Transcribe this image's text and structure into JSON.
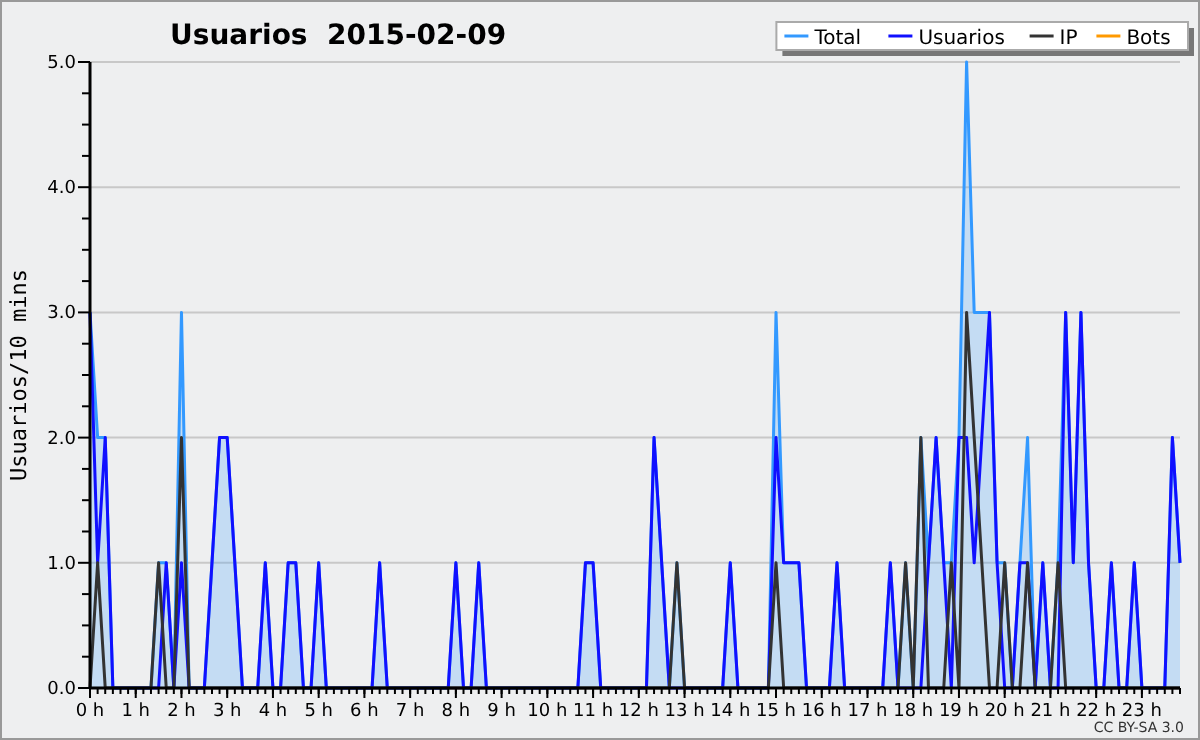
{
  "chart_data": {
    "type": "line",
    "title": "Usuarios  2015-02-09",
    "ylabel": "Usuarios/10 mins",
    "x": [
      0,
      0.167,
      0.333,
      0.5,
      0.667,
      0.833,
      1,
      1.167,
      1.333,
      1.5,
      1.667,
      1.833,
      2,
      2.167,
      2.333,
      2.5,
      2.667,
      2.833,
      3,
      3.167,
      3.333,
      3.5,
      3.667,
      3.833,
      4,
      4.167,
      4.333,
      4.5,
      4.667,
      4.833,
      5,
      5.167,
      5.333,
      5.5,
      5.667,
      5.833,
      6,
      6.167,
      6.333,
      6.5,
      6.667,
      6.833,
      7,
      7.167,
      7.333,
      7.5,
      7.667,
      7.833,
      8,
      8.167,
      8.333,
      8.5,
      8.667,
      8.833,
      9,
      9.167,
      9.333,
      9.5,
      9.667,
      9.833,
      10,
      10.167,
      10.333,
      10.5,
      10.667,
      10.833,
      11,
      11.167,
      11.333,
      11.5,
      11.667,
      11.833,
      12,
      12.167,
      12.333,
      12.5,
      12.667,
      12.833,
      13,
      13.167,
      13.333,
      13.5,
      13.667,
      13.833,
      14,
      14.167,
      14.333,
      14.5,
      14.667,
      14.833,
      15,
      15.167,
      15.333,
      15.5,
      15.667,
      15.833,
      16,
      16.167,
      16.333,
      16.5,
      16.667,
      16.833,
      17,
      17.167,
      17.333,
      17.5,
      17.667,
      17.833,
      18,
      18.167,
      18.333,
      18.5,
      18.667,
      18.833,
      19,
      19.167,
      19.333,
      19.5,
      19.667,
      19.833,
      20,
      20.167,
      20.333,
      20.5,
      20.667,
      20.833,
      21,
      21.167,
      21.333,
      21.5,
      21.667,
      21.833,
      22,
      22.167,
      22.333,
      22.5,
      22.667,
      22.833,
      23,
      23.167,
      23.333,
      23.5,
      23.667,
      23.833
    ],
    "series": [
      {
        "name": "Total",
        "type": "area",
        "color": "#3399ff",
        "values": [
          3,
          2,
          2,
          0,
          0,
          0,
          0,
          0,
          0,
          1,
          1,
          0,
          3,
          0,
          0,
          0,
          1,
          2,
          2,
          1,
          0,
          0,
          0,
          1,
          0,
          0,
          1,
          1,
          0,
          0,
          1,
          0,
          0,
          0,
          0,
          0,
          0,
          0,
          1,
          0,
          0,
          0,
          0,
          0,
          0,
          0,
          0,
          0,
          1,
          0,
          0,
          1,
          0,
          0,
          0,
          0,
          0,
          0,
          0,
          0,
          0,
          0,
          0,
          0,
          0,
          1,
          1,
          0,
          0,
          0,
          0,
          0,
          0,
          0,
          2,
          1,
          0,
          1,
          0,
          0,
          0,
          0,
          0,
          0,
          1,
          0,
          0,
          0,
          0,
          0,
          3,
          1,
          1,
          1,
          0,
          0,
          0,
          0,
          1,
          0,
          0,
          0,
          0,
          0,
          0,
          1,
          0,
          1,
          0,
          2,
          1,
          2,
          1,
          1,
          2,
          5,
          3,
          3,
          3,
          1,
          1,
          0,
          1,
          2,
          0,
          1,
          0,
          1,
          3,
          1,
          3,
          1,
          0,
          0,
          1,
          0,
          0,
          1,
          0,
          0,
          0,
          0,
          2,
          1
        ]
      },
      {
        "name": "Usuarios",
        "color": "#1010ff",
        "values": [
          3,
          1,
          2,
          0,
          0,
          0,
          0,
          0,
          0,
          0,
          1,
          0,
          1,
          0,
          0,
          0,
          1,
          2,
          2,
          1,
          0,
          0,
          0,
          1,
          0,
          0,
          1,
          1,
          0,
          0,
          1,
          0,
          0,
          0,
          0,
          0,
          0,
          0,
          1,
          0,
          0,
          0,
          0,
          0,
          0,
          0,
          0,
          0,
          1,
          0,
          0,
          1,
          0,
          0,
          0,
          0,
          0,
          0,
          0,
          0,
          0,
          0,
          0,
          0,
          0,
          1,
          1,
          0,
          0,
          0,
          0,
          0,
          0,
          0,
          2,
          1,
          0,
          0,
          0,
          0,
          0,
          0,
          0,
          0,
          1,
          0,
          0,
          0,
          0,
          0,
          2,
          1,
          1,
          1,
          0,
          0,
          0,
          0,
          1,
          0,
          0,
          0,
          0,
          0,
          0,
          1,
          0,
          0,
          0,
          0,
          1,
          2,
          1,
          0,
          2,
          2,
          1,
          2,
          3,
          1,
          0,
          0,
          1,
          1,
          0,
          1,
          0,
          0,
          3,
          1,
          3,
          1,
          0,
          0,
          1,
          0,
          0,
          1,
          0,
          0,
          0,
          0,
          2,
          1
        ]
      },
      {
        "name": "IP",
        "color": "#333333",
        "values": [
          0,
          1,
          0,
          0,
          0,
          0,
          0,
          0,
          0,
          1,
          0,
          0,
          2,
          0,
          0,
          0,
          0,
          0,
          0,
          0,
          0,
          0,
          0,
          0,
          0,
          0,
          0,
          0,
          0,
          0,
          0,
          0,
          0,
          0,
          0,
          0,
          0,
          0,
          0,
          0,
          0,
          0,
          0,
          0,
          0,
          0,
          0,
          0,
          0,
          0,
          0,
          0,
          0,
          0,
          0,
          0,
          0,
          0,
          0,
          0,
          0,
          0,
          0,
          0,
          0,
          0,
          0,
          0,
          0,
          0,
          0,
          0,
          0,
          0,
          0,
          0,
          0,
          1,
          0,
          0,
          0,
          0,
          0,
          0,
          0,
          0,
          0,
          0,
          0,
          0,
          1,
          0,
          0,
          0,
          0,
          0,
          0,
          0,
          0,
          0,
          0,
          0,
          0,
          0,
          0,
          0,
          0,
          1,
          0,
          2,
          0,
          0,
          0,
          1,
          0,
          3,
          2,
          1,
          0,
          0,
          1,
          0,
          0,
          1,
          0,
          0,
          0,
          1,
          0,
          0,
          0,
          0,
          0,
          0,
          0,
          0,
          0,
          0,
          0,
          0,
          0,
          0,
          0,
          0
        ]
      },
      {
        "name": "Bots",
        "color": "#ff9900",
        "values": [
          null,
          null,
          null,
          null,
          null,
          null,
          null,
          null,
          null,
          null,
          null,
          null,
          null,
          null,
          null,
          null,
          null,
          null,
          null,
          null,
          null,
          null,
          null,
          null,
          null,
          null,
          null,
          null,
          null,
          null,
          null,
          null,
          null,
          null,
          null,
          null,
          null,
          null,
          null,
          null,
          null,
          null,
          null,
          null,
          null,
          null,
          null,
          null,
          null,
          null,
          null,
          null,
          null,
          null,
          null,
          null,
          null,
          null,
          null,
          null,
          null,
          null,
          null,
          null,
          null,
          null,
          null,
          null,
          null,
          null,
          null,
          null,
          null,
          null,
          null,
          null,
          null,
          null,
          null,
          null,
          null,
          null,
          null,
          null,
          null,
          null,
          null,
          null,
          null,
          null,
          null,
          null,
          null,
          null,
          null,
          null,
          null,
          null,
          null,
          null,
          null,
          null,
          null,
          null,
          null,
          null,
          null,
          null,
          null,
          null,
          null,
          null,
          null,
          null,
          null,
          null,
          null,
          null,
          null,
          null,
          null,
          null,
          null,
          null,
          null,
          null,
          null,
          null,
          null,
          null,
          null,
          null,
          null,
          null,
          null,
          null,
          null,
          null,
          null,
          null,
          null,
          null,
          null,
          null
        ]
      }
    ],
    "xlim": [
      0,
      23.833
    ],
    "xticks": [
      {
        "value": 0,
        "label": "0 h"
      },
      {
        "value": 1,
        "label": "1 h"
      },
      {
        "value": 2,
        "label": "2 h"
      },
      {
        "value": 3,
        "label": "3 h"
      },
      {
        "value": 4,
        "label": "4 h"
      },
      {
        "value": 5,
        "label": "5 h"
      },
      {
        "value": 6,
        "label": "6 h"
      },
      {
        "value": 7,
        "label": "7 h"
      },
      {
        "value": 8,
        "label": "8 h"
      },
      {
        "value": 9,
        "label": "9 h"
      },
      {
        "value": 10,
        "label": "10 h"
      },
      {
        "value": 11,
        "label": "11 h"
      },
      {
        "value": 12,
        "label": "12 h"
      },
      {
        "value": 13,
        "label": "13 h"
      },
      {
        "value": 14,
        "label": "14 h"
      },
      {
        "value": 15,
        "label": "15 h"
      },
      {
        "value": 16,
        "label": "16 h"
      },
      {
        "value": 17,
        "label": "17 h"
      },
      {
        "value": 18,
        "label": "18 h"
      },
      {
        "value": 19,
        "label": "19 h"
      },
      {
        "value": 20,
        "label": "20 h"
      },
      {
        "value": 21,
        "label": "21 h"
      },
      {
        "value": 22,
        "label": "22 h"
      },
      {
        "value": 23,
        "label": "23 h"
      }
    ],
    "ylim": [
      0,
      5
    ],
    "yticks": [
      {
        "value": 0,
        "label": "0.0"
      },
      {
        "value": 0.25,
        "label": null
      },
      {
        "value": 0.5,
        "label": null
      },
      {
        "value": 0.75,
        "label": null
      },
      {
        "value": 1,
        "label": "1.0"
      },
      {
        "value": 1.25,
        "label": null
      },
      {
        "value": 1.5,
        "label": null
      },
      {
        "value": 1.75,
        "label": null
      },
      {
        "value": 2,
        "label": "2.0"
      },
      {
        "value": 2.25,
        "label": null
      },
      {
        "value": 2.5,
        "label": null
      },
      {
        "value": 2.75,
        "label": null
      },
      {
        "value": 3,
        "label": "3.0"
      },
      {
        "value": 3.25,
        "label": null
      },
      {
        "value": 3.5,
        "label": null
      },
      {
        "value": 3.75,
        "label": null
      },
      {
        "value": 4,
        "label": "4.0"
      },
      {
        "value": 4.25,
        "label": null
      },
      {
        "value": 4.5,
        "label": null
      },
      {
        "value": 4.75,
        "label": null
      },
      {
        "value": 5,
        "label": "5.0"
      }
    ],
    "grid": "y",
    "legend": "top right",
    "marker": "none",
    "line_style": "solid",
    "annotations": [
      "CC BY-SA 3.0"
    ]
  }
}
